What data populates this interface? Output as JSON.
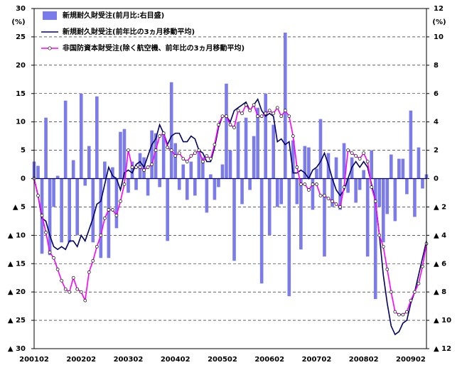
{
  "chart_data": {
    "type": "bar-line",
    "ylabel": "(%)",
    "y2label": "(%)",
    "categories": [
      "200102",
      null,
      null,
      null,
      null,
      null,
      null,
      null,
      null,
      null,
      null,
      null,
      "200202",
      null,
      null,
      null,
      null,
      null,
      null,
      null,
      null,
      null,
      null,
      null,
      "200302",
      null,
      null,
      null,
      null,
      null,
      null,
      null,
      null,
      null,
      null,
      null,
      "200402",
      null,
      null,
      null,
      null,
      null,
      null,
      null,
      null,
      null,
      null,
      null,
      "200502",
      null,
      null,
      null,
      null,
      null,
      null,
      null,
      null,
      null,
      null,
      null,
      "200602",
      null,
      null,
      null,
      null,
      null,
      null,
      null,
      null,
      null,
      null,
      null,
      "200702",
      null,
      null,
      null,
      null,
      null,
      null,
      null,
      null,
      null,
      null,
      null,
      "200802",
      null,
      null,
      null,
      null,
      null,
      null,
      null,
      null,
      null,
      null,
      null,
      "200902",
      null,
      null,
      null,
      null
    ],
    "series": [
      {
        "name": "新規耐久財受注(前月比:右目盛)",
        "type": "bar",
        "axis": "y2",
        "color": "#7b7bea",
        "values": [
          1.2,
          0.9,
          -5.3,
          4.3,
          -5.4,
          -2,
          0.2,
          -4.5,
          5.5,
          -4.5,
          1.3,
          -4,
          6,
          -0.5,
          2.3,
          -4.5,
          5.8,
          -5.6,
          1.2,
          -5.6,
          0.8,
          -3.5,
          3.3,
          3.5,
          -1,
          1.2,
          -0.8,
          1.8,
          1.5,
          -1.2,
          3.4,
          3.2,
          -0.6,
          3.3,
          -4.4,
          6.8,
          2.5,
          -0.8,
          1,
          -1.5,
          1.2,
          -1.2,
          2,
          1.5,
          -2.4,
          0.3,
          -1.5,
          -0.6,
          1,
          6.7,
          2,
          -5.8,
          4,
          -1.8,
          4.3,
          -0.8,
          3,
          5,
          -7.4,
          6,
          -4,
          3.8,
          -2,
          -1.8,
          10.3,
          -8.3,
          2.7,
          -1.8,
          -5,
          2.3,
          2.2,
          -2.2,
          0.7,
          4.2,
          -5.5,
          1.8,
          -2,
          1.5,
          -2.2,
          2.5,
          -1,
          1.5,
          -1.7,
          -0.8,
          0.6,
          -5.5,
          2,
          -8.5,
          -2,
          -4.5,
          -2.5,
          1.7,
          -3,
          1.4,
          1.4,
          -1.1,
          4.8,
          -2.7,
          2.2,
          -0.7,
          0.3
        ]
      },
      {
        "name": "新規耐久財受注(前年比の3ヵ月移動平均)",
        "type": "line",
        "color": "#000066",
        "values": [
          0,
          -3,
          -7,
          -7.5,
          -10,
          -12,
          -12.5,
          -12,
          -12.5,
          -11,
          -11,
          -12,
          -10,
          -11,
          -9,
          -7,
          -4.5,
          -4,
          -1,
          2,
          0.5,
          0,
          -2,
          1,
          1.5,
          1,
          2.5,
          3,
          2,
          4,
          6,
          7,
          9.5,
          8,
          6,
          7.5,
          8,
          8,
          6.5,
          6.5,
          7.5,
          7,
          5,
          4.5,
          3,
          3,
          5.5,
          9,
          11,
          11,
          10,
          12,
          12.5,
          13,
          13.5,
          12,
          13,
          14,
          12,
          11,
          11.5,
          11,
          6.5,
          7,
          6,
          6.5,
          1,
          1,
          1.5,
          1,
          0,
          1.5,
          2,
          3,
          4.5,
          2.5,
          0,
          -2,
          -3,
          -2,
          0,
          2,
          3,
          2,
          3,
          2,
          -1,
          -4,
          -10,
          -17,
          -22,
          -26,
          -27.5,
          -27,
          -25.5,
          -25,
          -22,
          -20,
          -17,
          -14,
          -11
        ]
      },
      {
        "name": "非国防資本財受注(除く航空機、前年比の3ヵ月移動平均)",
        "type": "line",
        "marker": true,
        "color": "#ff00ff",
        "values": [
          0,
          -3,
          -6.5,
          -9.5,
          -13,
          -14,
          -16,
          -18,
          -19.5,
          -20,
          -17.5,
          -19.5,
          -20,
          -21.5,
          -16.5,
          -14.5,
          -12,
          -10,
          -7,
          -5.5,
          -5.5,
          -6.5,
          -4,
          -1,
          5,
          2,
          2,
          2,
          1.5,
          2,
          2.5,
          5,
          7.5,
          8,
          5.5,
          5,
          4,
          4.5,
          3.5,
          3,
          4,
          4.5,
          5,
          3,
          4,
          3.5,
          6,
          9.5,
          11,
          11,
          9.5,
          9,
          12,
          11.5,
          13,
          12,
          13,
          11,
          11,
          11.5,
          12,
          11.5,
          12.5,
          11,
          12,
          11,
          7.5,
          2,
          -1,
          -1,
          -2,
          -1,
          -1,
          -3,
          -3,
          -3.5,
          -4,
          -4.5,
          -5,
          -1.5,
          5,
          4.5,
          4,
          3.5,
          4.5,
          3,
          -1.5,
          -4,
          -10,
          -12,
          -16,
          -20,
          -23.5,
          -24,
          -24,
          -23.5,
          -21.5,
          -20,
          -18.5,
          -15.5,
          -11.5
        ]
      }
    ],
    "ylim": [
      -30,
      30
    ],
    "yticks": [
      {
        "value": -30,
        "label": "▲ 30"
      },
      {
        "value": -25,
        "label": "▲ 25"
      },
      {
        "value": -20,
        "label": "▲ 20"
      },
      {
        "value": -15,
        "label": "▲ 15"
      },
      {
        "value": -10,
        "label": "▲ 10"
      },
      {
        "value": -5,
        "label": "▲ 5"
      },
      0,
      5,
      10,
      15,
      20,
      25,
      30
    ],
    "y2lim": [
      -12,
      12
    ],
    "y2ticks": [
      {
        "value": -12,
        "label": "▲ 12"
      },
      {
        "value": -10,
        "label": "▲ 10"
      },
      {
        "value": -8,
        "label": "▲ 8"
      },
      {
        "value": -6,
        "label": "▲ 6"
      },
      {
        "value": -4,
        "label": "▲ 4"
      },
      {
        "value": -2,
        "label": "▲ 2"
      },
      0,
      2,
      4,
      6,
      8,
      10,
      12
    ],
    "grid": true,
    "legend": "upper left"
  }
}
